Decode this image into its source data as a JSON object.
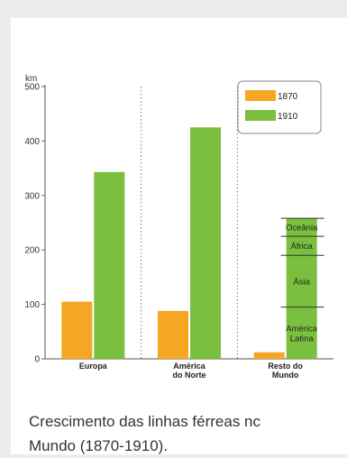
{
  "caption": {
    "line1": "Crescimento das linhas férreas nc",
    "line2": "Mundo (1870-1910)."
  },
  "chart_data": {
    "type": "bar",
    "title": "Crescimento das linhas férreas no Mundo (1870-1910).",
    "ylabel": "km",
    "ylim": [
      0,
      500
    ],
    "yticks": [
      0,
      100,
      200,
      300,
      400,
      500
    ],
    "categories": [
      "Europa",
      "América do Norte",
      "Resto do Mundo"
    ],
    "category_labels": [
      [
        "Europa"
      ],
      [
        "América",
        "do Norte"
      ],
      [
        "Resto do",
        "Mundo"
      ]
    ],
    "series": [
      {
        "name": "1870",
        "color": "#f5a623",
        "values": [
          105,
          88,
          12
        ]
      },
      {
        "name": "1910",
        "color": "#7bbf3e",
        "values": [
          343,
          425,
          258
        ]
      }
    ],
    "stack_segments": {
      "category": "Resto do Mundo",
      "series": "1910",
      "segments": [
        {
          "label": "América Latina",
          "label_lines": [
            "América",
            "Latina"
          ],
          "from": 0,
          "to": 95
        },
        {
          "label": "Ásia",
          "label_lines": [
            "Ásia"
          ],
          "from": 95,
          "to": 190
        },
        {
          "label": "África",
          "label_lines": [
            "África"
          ],
          "from": 190,
          "to": 225
        },
        {
          "label": "Oceânia",
          "label_lines": [
            "Oceânia"
          ],
          "from": 225,
          "to": 258
        }
      ]
    },
    "legend": "top-right",
    "grid": "dotted vertical separators between categories"
  }
}
